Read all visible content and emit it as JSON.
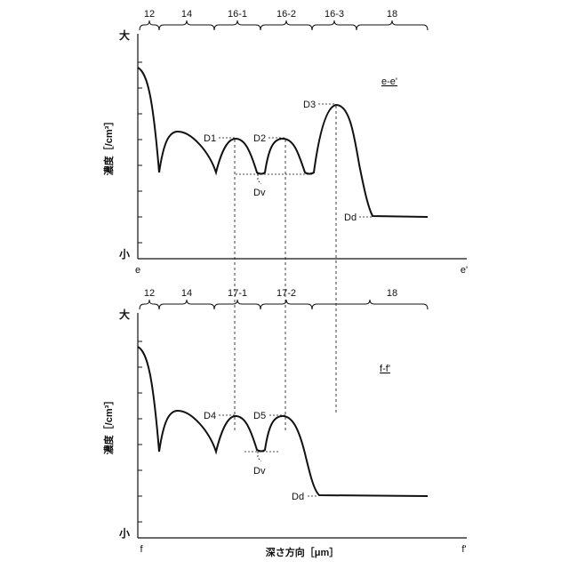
{
  "top_panel": {
    "regions": [
      "12",
      "14",
      "16-1",
      "16-2",
      "16-3",
      "18"
    ],
    "y_high": "大",
    "y_low": "小",
    "ylabel": "濃度［/cm³］",
    "x_start": "e",
    "x_end": "e'",
    "section": "e-e'",
    "annotations": [
      "D1",
      "D2",
      "D3",
      "Dv",
      "Dd"
    ]
  },
  "bottom_panel": {
    "regions": [
      "12",
      "14",
      "17-1",
      "17-2",
      "18"
    ],
    "y_high": "大",
    "y_low": "小",
    "ylabel": "濃度［/cm³］",
    "x_start": "f",
    "x_end": "f'",
    "section": "f-f'",
    "annotations": [
      "D4",
      "D5",
      "Dv",
      "Dd"
    ],
    "xlabel": "深さ方向［μm］"
  }
}
